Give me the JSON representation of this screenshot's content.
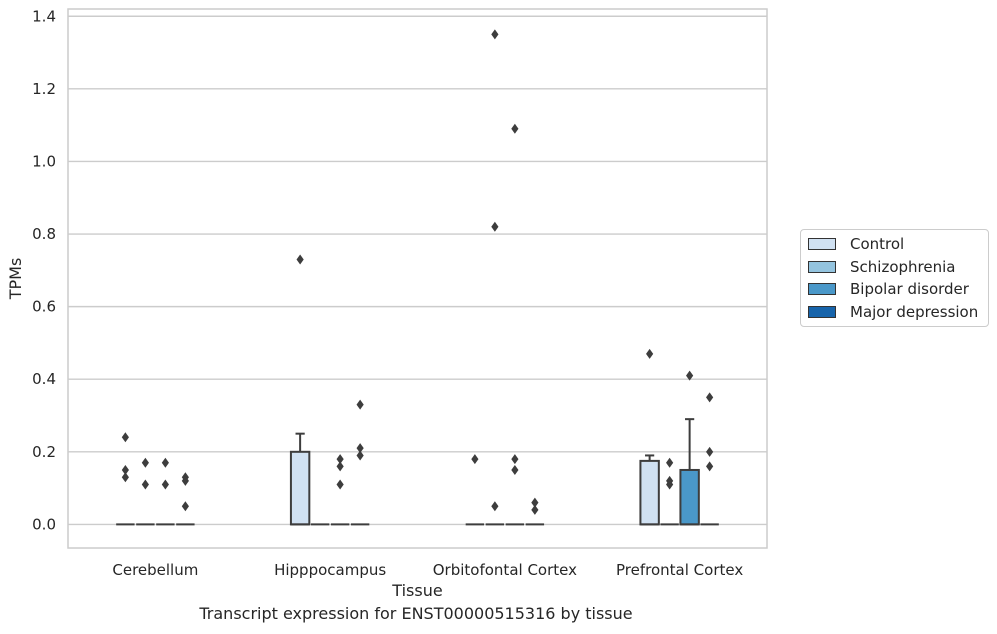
{
  "caption": "Transcript expression for ENST00000515316 by tissue",
  "chart_data": {
    "type": "box",
    "xlabel": "Tissue",
    "ylabel": "TPMs",
    "ylim": [
      -0.065,
      1.42
    ],
    "yticks": [
      "0.0",
      "0.2",
      "0.4",
      "0.6",
      "0.8",
      "1.0",
      "1.2",
      "1.4"
    ],
    "ytick_values": [
      0.0,
      0.2,
      0.4,
      0.6,
      0.8,
      1.0,
      1.2,
      1.4
    ],
    "grid": "horizontal",
    "legend_position": "right",
    "categories": [
      "Cerebellum",
      "Hipppocampus",
      "Orbitofontal Cortex",
      "Prefrontal Cortex"
    ],
    "series": [
      {
        "name": "Control",
        "color": "#d0e1f2",
        "boxes": [
          {
            "q1": 0,
            "median": 0,
            "q3": 0,
            "whisker_low": 0,
            "whisker_high": 0,
            "outliers": [
              0.24,
              0.15,
              0.13
            ]
          },
          {
            "q1": 0,
            "median": 0,
            "q3": 0.2,
            "whisker_low": 0,
            "whisker_high": 0.25,
            "outliers": [
              0.73
            ]
          },
          {
            "q1": 0,
            "median": 0,
            "q3": 0,
            "whisker_low": 0,
            "whisker_high": 0,
            "outliers": [
              0.18
            ]
          },
          {
            "q1": 0,
            "median": 0,
            "q3": 0.175,
            "whisker_low": 0,
            "whisker_high": 0.19,
            "outliers": [
              0.47
            ]
          }
        ]
      },
      {
        "name": "Schizophrenia",
        "color": "#94c4df",
        "boxes": [
          {
            "q1": 0,
            "median": 0,
            "q3": 0,
            "whisker_low": 0,
            "whisker_high": 0,
            "outliers": [
              0.17,
              0.11
            ]
          },
          {
            "q1": 0,
            "median": 0,
            "q3": 0,
            "whisker_low": 0,
            "whisker_high": 0,
            "outliers": []
          },
          {
            "q1": 0,
            "median": 0,
            "q3": 0,
            "whisker_low": 0,
            "whisker_high": 0,
            "outliers": [
              1.35,
              0.82,
              0.05
            ]
          },
          {
            "q1": 0,
            "median": 0,
            "q3": 0,
            "whisker_low": 0,
            "whisker_high": 0,
            "outliers": [
              0.17,
              0.12,
              0.11
            ]
          }
        ]
      },
      {
        "name": "Bipolar disorder",
        "color": "#4a98c9",
        "boxes": [
          {
            "q1": 0,
            "median": 0,
            "q3": 0,
            "whisker_low": 0,
            "whisker_high": 0,
            "outliers": [
              0.17,
              0.11
            ]
          },
          {
            "q1": 0,
            "median": 0,
            "q3": 0,
            "whisker_low": 0,
            "whisker_high": 0,
            "outliers": [
              0.18,
              0.16,
              0.11
            ]
          },
          {
            "q1": 0,
            "median": 0,
            "q3": 0,
            "whisker_low": 0,
            "whisker_high": 0,
            "outliers": [
              1.09,
              0.18,
              0.15
            ]
          },
          {
            "q1": 0,
            "median": 0,
            "q3": 0.15,
            "whisker_low": 0,
            "whisker_high": 0.29,
            "outliers": [
              0.41
            ]
          }
        ]
      },
      {
        "name": "Major depression",
        "color": "#1764ab",
        "boxes": [
          {
            "q1": 0,
            "median": 0,
            "q3": 0,
            "whisker_low": 0,
            "whisker_high": 0,
            "outliers": [
              0.13,
              0.12,
              0.05
            ]
          },
          {
            "q1": 0,
            "median": 0,
            "q3": 0,
            "whisker_low": 0,
            "whisker_high": 0,
            "outliers": [
              0.33,
              0.21,
              0.19
            ]
          },
          {
            "q1": 0,
            "median": 0,
            "q3": 0,
            "whisker_low": 0,
            "whisker_high": 0,
            "outliers": [
              0.06,
              0.04
            ]
          },
          {
            "q1": 0,
            "median": 0,
            "q3": 0,
            "whisker_low": 0,
            "whisker_high": 0,
            "outliers": [
              0.35,
              0.2,
              0.16
            ]
          }
        ]
      }
    ]
  }
}
